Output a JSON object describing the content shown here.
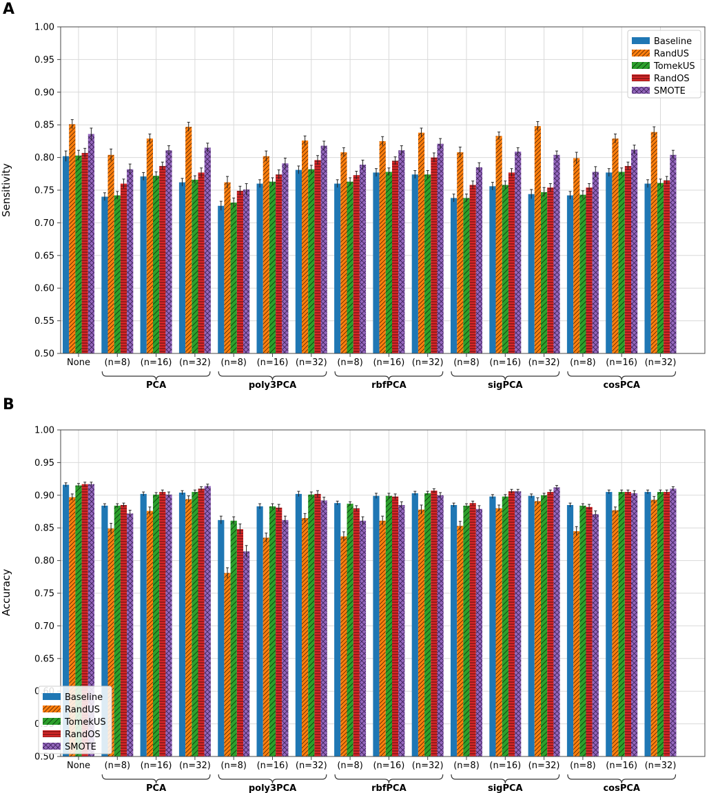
{
  "colors": {
    "Baseline": "#1f77b4",
    "RandUS": "#ff7f0e",
    "TomekUS": "#2ca02c",
    "RandOS": "#d62728",
    "SMOTE": "#9467bd"
  },
  "chart_data": [
    {
      "type": "bar",
      "panel": "A",
      "ylabel": "Sensitivity",
      "ylim": [
        0.5,
        1.0
      ],
      "yticks": [
        "0.50",
        "0.55",
        "0.60",
        "0.65",
        "0.70",
        "0.75",
        "0.80",
        "0.85",
        "0.90",
        "0.95",
        "1.00"
      ],
      "categories": [
        "None",
        "(n=8)",
        "(n=16)",
        "(n=32)",
        "(n=8)",
        "(n=16)",
        "(n=32)",
        "(n=8)",
        "(n=16)",
        "(n=32)",
        "(n=8)",
        "(n=16)",
        "(n=32)",
        "(n=8)",
        "(n=16)",
        "(n=32)"
      ],
      "groups": [
        {
          "label": "PCA",
          "categories": [
            1,
            2,
            3
          ]
        },
        {
          "label": "poly3PCA",
          "categories": [
            4,
            5,
            6
          ]
        },
        {
          "label": "rbfPCA",
          "categories": [
            7,
            8,
            9
          ]
        },
        {
          "label": "sigPCA",
          "categories": [
            10,
            11,
            12
          ]
        },
        {
          "label": "cosPCA",
          "categories": [
            13,
            14,
            15
          ]
        }
      ],
      "legend": {
        "position": "top-right",
        "entries": [
          "Baseline",
          "RandUS",
          "TomekUS",
          "RandOS",
          "SMOTE"
        ]
      },
      "series": [
        {
          "name": "Baseline",
          "values": [
            0.802,
            0.74,
            0.771,
            0.762,
            0.726,
            0.76,
            0.781,
            0.76,
            0.777,
            0.774,
            0.738,
            0.756,
            0.744,
            0.742,
            0.777,
            0.76
          ],
          "errors": [
            0.008,
            0.006,
            0.006,
            0.006,
            0.007,
            0.006,
            0.006,
            0.006,
            0.006,
            0.006,
            0.006,
            0.006,
            0.007,
            0.006,
            0.006,
            0.006
          ]
        },
        {
          "name": "RandUS",
          "values": [
            0.851,
            0.804,
            0.829,
            0.847,
            0.762,
            0.802,
            0.826,
            0.808,
            0.825,
            0.838,
            0.808,
            0.833,
            0.848,
            0.799,
            0.829,
            0.839
          ],
          "errors": [
            0.007,
            0.009,
            0.007,
            0.007,
            0.009,
            0.008,
            0.007,
            0.007,
            0.007,
            0.007,
            0.008,
            0.006,
            0.007,
            0.009,
            0.007,
            0.008
          ]
        },
        {
          "name": "TomekUS",
          "values": [
            0.803,
            0.742,
            0.772,
            0.766,
            0.731,
            0.763,
            0.782,
            0.763,
            0.778,
            0.774,
            0.738,
            0.758,
            0.747,
            0.743,
            0.778,
            0.761
          ],
          "errors": [
            0.008,
            0.006,
            0.006,
            0.006,
            0.007,
            0.006,
            0.006,
            0.006,
            0.006,
            0.006,
            0.006,
            0.006,
            0.007,
            0.006,
            0.006,
            0.006
          ]
        },
        {
          "name": "RandOS",
          "values": [
            0.807,
            0.76,
            0.787,
            0.777,
            0.749,
            0.774,
            0.796,
            0.773,
            0.795,
            0.8,
            0.758,
            0.777,
            0.754,
            0.754,
            0.787,
            0.765
          ],
          "errors": [
            0.007,
            0.007,
            0.006,
            0.007,
            0.007,
            0.007,
            0.007,
            0.006,
            0.006,
            0.007,
            0.006,
            0.006,
            0.006,
            0.006,
            0.006,
            0.006
          ]
        },
        {
          "name": "SMOTE",
          "values": [
            0.836,
            0.782,
            0.811,
            0.815,
            0.751,
            0.791,
            0.818,
            0.789,
            0.811,
            0.821,
            0.785,
            0.809,
            0.804,
            0.778,
            0.812,
            0.804
          ],
          "errors": [
            0.009,
            0.008,
            0.007,
            0.007,
            0.009,
            0.008,
            0.007,
            0.007,
            0.007,
            0.008,
            0.007,
            0.006,
            0.006,
            0.008,
            0.007,
            0.007
          ]
        }
      ]
    },
    {
      "type": "bar",
      "panel": "B",
      "ylabel": "Accuracy",
      "ylim": [
        0.5,
        1.0
      ],
      "yticks": [
        "0.50",
        "0.55",
        "0.60",
        "0.65",
        "0.70",
        "0.75",
        "0.80",
        "0.85",
        "0.90",
        "0.95",
        "1.00"
      ],
      "categories": [
        "None",
        "(n=8)",
        "(n=16)",
        "(n=32)",
        "(n=8)",
        "(n=16)",
        "(n=32)",
        "(n=8)",
        "(n=16)",
        "(n=32)",
        "(n=8)",
        "(n=16)",
        "(n=32)",
        "(n=8)",
        "(n=16)",
        "(n=32)"
      ],
      "groups": [
        {
          "label": "PCA",
          "categories": [
            1,
            2,
            3
          ]
        },
        {
          "label": "poly3PCA",
          "categories": [
            4,
            5,
            6
          ]
        },
        {
          "label": "rbfPCA",
          "categories": [
            7,
            8,
            9
          ]
        },
        {
          "label": "sigPCA",
          "categories": [
            10,
            11,
            12
          ]
        },
        {
          "label": "cosPCA",
          "categories": [
            13,
            14,
            15
          ]
        }
      ],
      "legend": {
        "position": "bottom-left",
        "entries": [
          "Baseline",
          "RandUS",
          "TomekUS",
          "RandOS",
          "SMOTE"
        ]
      },
      "series": [
        {
          "name": "Baseline",
          "values": [
            0.916,
            0.884,
            0.902,
            0.904,
            0.862,
            0.883,
            0.902,
            0.888,
            0.899,
            0.903,
            0.885,
            0.898,
            0.899,
            0.885,
            0.905,
            0.905
          ],
          "errors": [
            0.003,
            0.003,
            0.003,
            0.003,
            0.006,
            0.004,
            0.004,
            0.003,
            0.004,
            0.003,
            0.003,
            0.003,
            0.003,
            0.003,
            0.003,
            0.003
          ]
        },
        {
          "name": "RandUS",
          "values": [
            0.897,
            0.849,
            0.876,
            0.894,
            0.781,
            0.835,
            0.865,
            0.837,
            0.861,
            0.878,
            0.853,
            0.88,
            0.891,
            0.845,
            0.877,
            0.893
          ],
          "errors": [
            0.005,
            0.008,
            0.006,
            0.005,
            0.008,
            0.007,
            0.007,
            0.007,
            0.007,
            0.007,
            0.007,
            0.005,
            0.005,
            0.007,
            0.005,
            0.005
          ]
        },
        {
          "name": "TomekUS",
          "values": [
            0.915,
            0.884,
            0.901,
            0.905,
            0.861,
            0.883,
            0.901,
            0.887,
            0.899,
            0.903,
            0.884,
            0.898,
            0.9,
            0.884,
            0.905,
            0.905
          ],
          "errors": [
            0.003,
            0.003,
            0.003,
            0.003,
            0.006,
            0.004,
            0.004,
            0.003,
            0.004,
            0.003,
            0.003,
            0.003,
            0.003,
            0.003,
            0.003,
            0.003
          ]
        },
        {
          "name": "RandOS",
          "values": [
            0.917,
            0.885,
            0.905,
            0.91,
            0.848,
            0.881,
            0.902,
            0.88,
            0.898,
            0.907,
            0.888,
            0.906,
            0.905,
            0.882,
            0.905,
            0.905
          ],
          "errors": [
            0.003,
            0.003,
            0.003,
            0.003,
            0.008,
            0.005,
            0.005,
            0.004,
            0.004,
            0.003,
            0.003,
            0.003,
            0.003,
            0.004,
            0.003,
            0.003
          ]
        },
        {
          "name": "SMOTE",
          "values": [
            0.917,
            0.872,
            0.901,
            0.914,
            0.814,
            0.862,
            0.892,
            0.861,
            0.885,
            0.9,
            0.879,
            0.906,
            0.912,
            0.871,
            0.903,
            0.91
          ],
          "errors": [
            0.003,
            0.005,
            0.004,
            0.003,
            0.009,
            0.006,
            0.005,
            0.006,
            0.005,
            0.004,
            0.005,
            0.003,
            0.003,
            0.005,
            0.004,
            0.003
          ]
        }
      ]
    }
  ]
}
